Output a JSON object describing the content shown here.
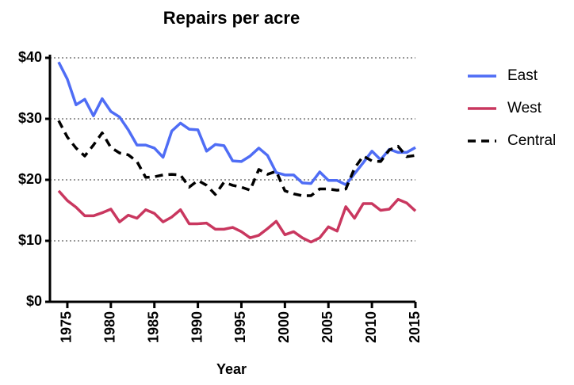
{
  "chart_data": {
    "type": "line",
    "title": "Repairs per acre",
    "x_label": "Year",
    "x": [
      1974,
      1975,
      1976,
      1977,
      1978,
      1979,
      1980,
      1981,
      1982,
      1983,
      1984,
      1985,
      1986,
      1987,
      1988,
      1989,
      1990,
      1991,
      1992,
      1993,
      1994,
      1995,
      1996,
      1997,
      1998,
      1999,
      2000,
      2001,
      2002,
      2003,
      2004,
      2005,
      2006,
      2007,
      2008,
      2009,
      2010,
      2011,
      2012,
      2013,
      2014,
      2015
    ],
    "series": [
      {
        "name": "East",
        "color": "#4f6df5",
        "linestyle": "solid",
        "values": [
          39.3,
          36.5,
          32.3,
          33.2,
          30.5,
          33.3,
          31.2,
          30.3,
          28.2,
          25.7,
          25.7,
          25.2,
          23.7,
          28,
          29.3,
          28.3,
          28.2,
          24.7,
          25.8,
          25.6,
          23.1,
          23,
          23.9,
          25.2,
          24,
          21.2,
          20.8,
          20.8,
          19.5,
          19.4,
          21.3,
          19.9,
          19.9,
          19.2,
          21,
          22.8,
          24.7,
          23.3,
          25,
          24.5,
          24.5,
          25.3
        ]
      },
      {
        "name": "West",
        "color": "#c9375f",
        "linestyle": "solid",
        "values": [
          18.2,
          16.6,
          15.5,
          14.1,
          14.1,
          14.6,
          15.2,
          13.1,
          14.2,
          13.7,
          15.1,
          14.5,
          13.1,
          13.9,
          15.1,
          12.8,
          12.8,
          12.9,
          11.9,
          11.9,
          12.2,
          11.5,
          10.5,
          10.9,
          12,
          13.2,
          11,
          11.5,
          10.5,
          9.8,
          10.5,
          12.3,
          11.6,
          15.6,
          13.7,
          16.1,
          16.1,
          15,
          15.2,
          16.8,
          16.2,
          14.9
        ]
      },
      {
        "name": "Central",
        "color": "#000000",
        "linestyle": "dashed",
        "values": [
          29.7,
          27,
          25.2,
          23.9,
          25.7,
          27.7,
          25.3,
          24.4,
          24.1,
          23,
          20.4,
          20.5,
          20.8,
          20.9,
          20.8,
          18.8,
          19.9,
          19.1,
          17.6,
          19.6,
          19.1,
          18.8,
          18.3,
          21.7,
          20.9,
          21.4,
          18.2,
          17.7,
          17.4,
          17.4,
          18.5,
          18.5,
          18.3,
          18.5,
          21.9,
          23.9,
          23.1,
          23,
          24.9,
          25.5,
          23.8,
          24
        ]
      }
    ],
    "xlim": [
      1973,
      2015
    ],
    "xticks": [
      1975,
      1980,
      1985,
      1990,
      1995,
      2000,
      2005,
      2010,
      2015
    ],
    "ylim": [
      0,
      40
    ],
    "yticks": [
      {
        "value": 0,
        "label": "$0"
      },
      {
        "value": 10,
        "label": "$10"
      },
      {
        "value": 20,
        "label": "$20"
      },
      {
        "value": 30,
        "label": "$30"
      },
      {
        "value": 40,
        "label": "$40"
      }
    ],
    "grid": true,
    "legend": "right"
  }
}
